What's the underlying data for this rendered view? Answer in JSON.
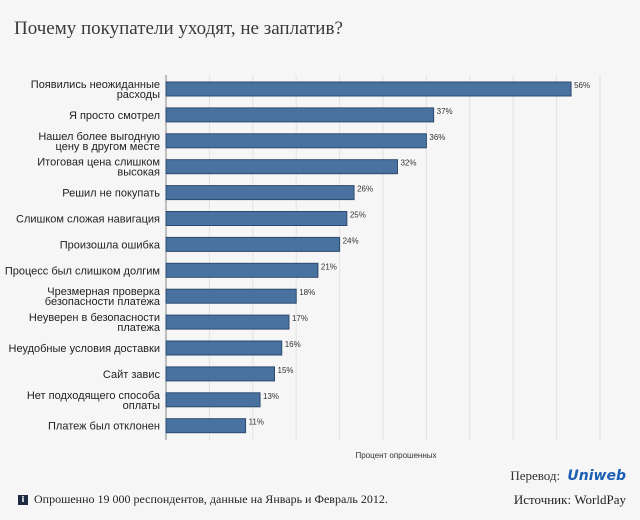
{
  "chart_data": {
    "type": "bar",
    "orientation": "horizontal",
    "title": "Почему покупатели уходят, не заплатив?",
    "xlabel": "Процент опрошенных",
    "ylabel": "",
    "xlim": [
      0,
      60
    ],
    "grid": true,
    "categories": [
      [
        "Появились неожиданные",
        "расходы"
      ],
      [
        "Я просто смотрел"
      ],
      [
        "Нашел более выгодную",
        "цену в другом месте"
      ],
      [
        "Итоговая цена слишком",
        "высокая"
      ],
      [
        "Решил не покупать"
      ],
      [
        "Слишком сложая навигация"
      ],
      [
        "Произошла ошибка"
      ],
      [
        "Процесс был слишком долгим"
      ],
      [
        "Чрезмерная проверка",
        "безопасности платежа"
      ],
      [
        "Неуверен в безопасности",
        "платежа"
      ],
      [
        "Неудобные условия доставки"
      ],
      [
        "Сайт завис"
      ],
      [
        "Нет подходящего способа",
        "оплаты"
      ],
      [
        "Платеж был отклонен"
      ]
    ],
    "values": [
      56,
      37,
      36,
      32,
      26,
      25,
      24,
      21,
      18,
      17,
      16,
      15,
      13,
      11
    ],
    "value_labels": [
      "56%",
      "37%",
      "36%",
      "32%",
      "26%",
      "25%",
      "24%",
      "21%",
      "18%",
      "17%",
      "16%",
      "15%",
      "13%",
      "11%"
    ],
    "bar_color": "#4a72a0"
  },
  "footer": {
    "translation_label": "Перевод:",
    "translation_logo": "Uniweb",
    "info_icon": "i",
    "note": "Опрошенно 19 000 респондентов, данные на Январь и Февраль 2012.",
    "source": "Источник: WorldPay"
  }
}
